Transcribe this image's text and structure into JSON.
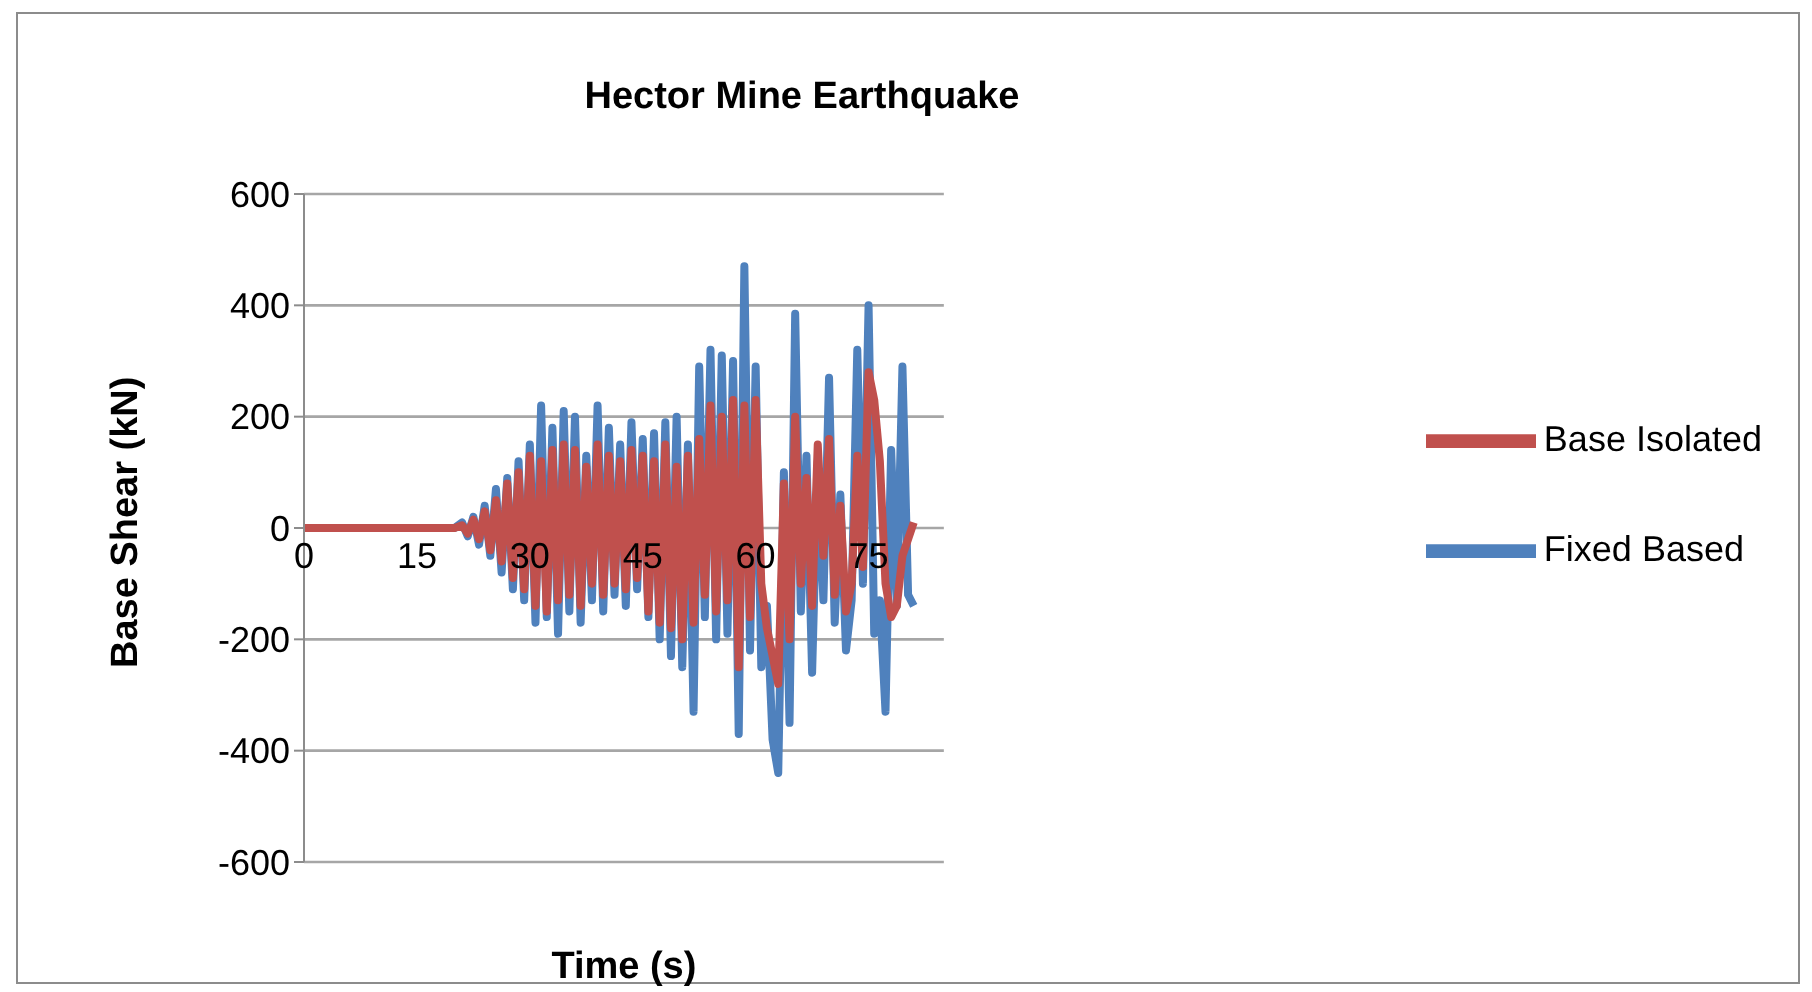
{
  "chart_data": {
    "type": "line",
    "title": "Hector Mine Earthquake",
    "xlabel": "Time (s)",
    "ylabel": "Base Shear (kN)",
    "x": [
      0,
      20,
      21,
      21.75,
      22.5,
      23.25,
      24,
      24.75,
      25.5,
      26.25,
      27,
      27.75,
      28.5,
      29.25,
      30,
      30.75,
      31.5,
      32.25,
      33,
      33.75,
      34.5,
      35.25,
      36,
      36.75,
      37.5,
      38.25,
      39,
      39.75,
      40.5,
      41.25,
      42,
      42.75,
      43.5,
      44.25,
      45,
      45.75,
      46.5,
      47.25,
      48,
      48.75,
      49.5,
      50.25,
      51,
      51.75,
      52.5,
      53.25,
      54,
      54.75,
      55.5,
      56.25,
      57,
      57.75,
      58.5,
      59.25,
      60,
      60.75,
      61.5,
      62.25,
      63,
      63.75,
      64.5,
      65.25,
      66,
      66.75,
      67.5,
      68.25,
      69,
      69.75,
      70.5,
      71.25,
      72,
      72.75,
      73.5,
      74.25,
      75,
      75.75,
      76.5,
      77.25,
      78,
      78.75,
      79.5,
      80.25,
      81
    ],
    "series": [
      {
        "name": "Fixed Based",
        "color": "#4f81bd",
        "values": [
          0,
          0,
          10,
          -15,
          20,
          -30,
          40,
          -50,
          70,
          -80,
          90,
          -110,
          120,
          -130,
          150,
          -170,
          220,
          -160,
          180,
          -190,
          210,
          -150,
          200,
          -170,
          130,
          -130,
          220,
          -150,
          180,
          -120,
          150,
          -140,
          190,
          -110,
          160,
          -160,
          170,
          -200,
          190,
          -230,
          200,
          -250,
          150,
          -330,
          290,
          -160,
          320,
          -200,
          310,
          -190,
          300,
          -370,
          470,
          -220,
          290,
          -250,
          -140,
          -380,
          -440,
          100,
          -350,
          385,
          -150,
          130,
          -260,
          120,
          -130,
          270,
          -170,
          60,
          -220,
          -130,
          320,
          -100,
          400,
          -190,
          -130,
          -330,
          140,
          -140,
          290,
          -120,
          -140
        ]
      },
      {
        "name": "Base Isolated",
        "color": "#c0504d",
        "values": [
          0,
          0,
          5,
          -10,
          15,
          -20,
          30,
          -40,
          50,
          -60,
          80,
          -90,
          100,
          -110,
          130,
          -140,
          120,
          -150,
          140,
          -130,
          150,
          -120,
          140,
          -140,
          110,
          -100,
          150,
          -120,
          130,
          -100,
          120,
          -110,
          140,
          -90,
          130,
          -150,
          120,
          -170,
          150,
          -180,
          110,
          -200,
          130,
          -170,
          160,
          -120,
          220,
          -150,
          200,
          -130,
          230,
          -250,
          220,
          -160,
          230,
          -100,
          -180,
          -230,
          -280,
          80,
          -200,
          200,
          -100,
          90,
          -140,
          150,
          -50,
          160,
          -120,
          40,
          -150,
          -100,
          130,
          -70,
          280,
          230,
          120,
          -100,
          -160,
          -140,
          -50,
          -20,
          10
        ]
      }
    ],
    "xlim": [
      0,
      85
    ],
    "xticks": [
      0,
      15,
      30,
      45,
      60,
      75
    ],
    "ylim": [
      -600,
      600
    ],
    "yticks": [
      -600,
      -400,
      -200,
      0,
      200,
      400,
      600
    ],
    "grid": "y",
    "legend": "right",
    "line_style": "solid",
    "marker": "none"
  }
}
